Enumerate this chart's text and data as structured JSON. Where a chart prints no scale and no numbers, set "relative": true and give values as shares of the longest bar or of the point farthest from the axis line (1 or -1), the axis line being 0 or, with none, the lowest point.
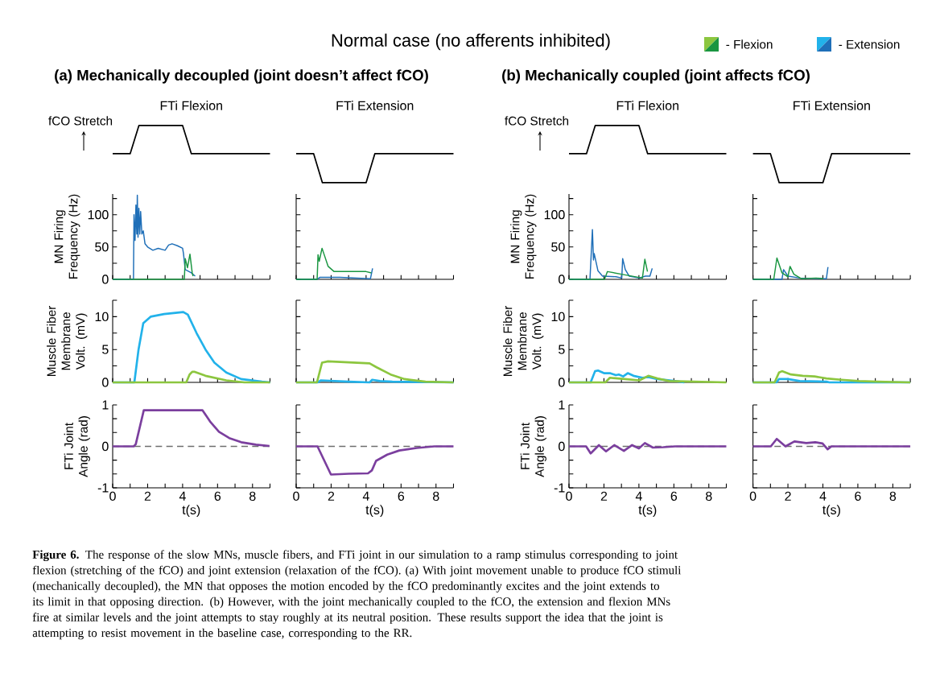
{
  "chart_data": [
    {
      "type": "line",
      "relative": true,
      "title": "FTi Flexion",
      "ylabel": "fCO Stretch",
      "tick_labels": false,
      "categories": [
        null,
        null,
        null,
        null,
        null,
        null,
        null,
        null,
        null,
        null,
        null,
        null,
        null,
        null,
        null,
        null,
        null,
        null,
        null
      ],
      "annotations": [
        "Normal case (no afferents inhibited)",
        "(a) Mechanically decoupled (joint doesn’t affect fCO)",
        "**Figure 6.** The response of the slow MNs, muscle fibers, and FTi joint in our simulation to a ramp stimulus corresponding to joint flexion (stretching of the fCO) and joint extension (relaxation of the fCO). (a) With joint movement unable to produce fCO stimuli (mechanically decoupled), the MN that opposes the motion encoded by the fCO predominantly excites and the joint extends to its limit in that opposing direction. (b) However, with the joint mechanically coupled to the fCO, the extension and flexion MNs fire at similar levels and the joint attempts to stay roughly at its neutral position. These results support the idea that the joint is attempting to resist movement in the baseline case, corresponding to the RR."
      ],
      "series": [
        {
          "color": "#000000",
          "values": [
            0,
            0,
            0,
            1,
            1,
            1,
            1,
            1,
            1,
            0,
            0,
            0,
            0,
            0,
            0,
            0,
            0,
            0,
            0
          ]
        }
      ]
    },
    {
      "type": "line",
      "relative": true,
      "title": "FTi Extension",
      "tick_labels": false,
      "categories": [
        null,
        null,
        null,
        null,
        null,
        null,
        null,
        null,
        null,
        null,
        null,
        null,
        null,
        null,
        null,
        null,
        null,
        null,
        null
      ],
      "series": [
        {
          "color": "#000000",
          "values": [
            1,
            1,
            1,
            0,
            0,
            0,
            0,
            0,
            0,
            1,
            1,
            1,
            1,
            1,
            1,
            1,
            1,
            1,
            1
          ]
        }
      ]
    },
    {
      "type": "line",
      "relative": true,
      "title": "FTi Flexion",
      "ylabel": "fCO Stretch",
      "tick_labels": false,
      "categories": [
        null,
        null,
        null,
        null,
        null,
        null,
        null,
        null,
        null,
        null,
        null,
        null,
        null,
        null,
        null,
        null,
        null,
        null,
        null
      ],
      "annotations": [
        "(b) Mechanically coupled (joint affects fCO)"
      ],
      "series": [
        {
          "color": "#000000",
          "values": [
            0,
            0,
            0,
            1,
            1,
            1,
            1,
            1,
            1,
            0,
            0,
            0,
            0,
            0,
            0,
            0,
            0,
            0,
            0
          ]
        }
      ]
    },
    {
      "type": "line",
      "relative": true,
      "title": "FTi Extension",
      "tick_labels": false,
      "categories": [
        null,
        null,
        null,
        null,
        null,
        null,
        null,
        null,
        null,
        null,
        null,
        null,
        null,
        null,
        null,
        null,
        null,
        null,
        null
      ],
      "series": [
        {
          "color": "#000000",
          "values": [
            1,
            1,
            1,
            0,
            0,
            0,
            0,
            0,
            0,
            1,
            1,
            1,
            1,
            1,
            1,
            1,
            1,
            1,
            1
          ]
        }
      ]
    },
    {
      "type": "line",
      "ylabel": "MN Firing Frequency (Hz)",
      "xlim": [
        0,
        9
      ],
      "ylim": [
        0,
        132
      ],
      "tick_labels": "y",
      "legend": "top right",
      "xticks": [
        0,
        {
          "value": 1,
          "label": null
        },
        2,
        {
          "value": 3,
          "label": null
        },
        4,
        {
          "value": 5,
          "label": null
        },
        6,
        {
          "value": 7,
          "label": null
        },
        8,
        {
          "value": 9,
          "label": null
        }
      ],
      "yticks": [
        0,
        {
          "value": 25,
          "label": null
        },
        50,
        {
          "value": 75,
          "label": null
        },
        100,
        {
          "value": 125,
          "label": null
        }
      ],
      "series": [
        {
          "name": "- Extension",
          "color": "#1f6fb8",
          "x": [
            0,
            1.19,
            1.22,
            1.28,
            1.33,
            1.38,
            1.41,
            1.45,
            1.5,
            1.55,
            1.6,
            1.67,
            1.75,
            1.85,
            2.0,
            2.3,
            2.6,
            3.0,
            3.2,
            3.4,
            3.7,
            4.0,
            4.05,
            4.15,
            4.5,
            4.72
          ],
          "values": [
            0,
            0,
            100,
            60,
            115,
            70,
            130,
            65,
            110,
            70,
            105,
            70,
            75,
            55,
            50,
            45,
            48,
            45,
            53,
            55,
            52,
            48,
            40,
            15,
            10,
            5
          ]
        },
        {
          "name": "- Flexion",
          "color": "#1a9641",
          "x": [
            0,
            4.1,
            4.15,
            4.28,
            4.42,
            4.55,
            4.6
          ],
          "values": [
            0,
            0,
            32,
            18,
            39,
            10,
            5
          ]
        }
      ]
    },
    {
      "type": "line",
      "xlim": [
        0,
        9
      ],
      "ylim": [
        0,
        132
      ],
      "tick_labels": false,
      "xticks": [
        0,
        {
          "value": 1,
          "label": null
        },
        2,
        {
          "value": 3,
          "label": null
        },
        4,
        {
          "value": 5,
          "label": null
        },
        6,
        {
          "value": 7,
          "label": null
        },
        8,
        {
          "value": 9,
          "label": null
        }
      ],
      "yticks": [
        0,
        {
          "value": 25,
          "label": null
        },
        50,
        {
          "value": 75,
          "label": null
        },
        100,
        {
          "value": 125,
          "label": null
        }
      ],
      "series": [
        {
          "color": "#1f6fb8",
          "x": [
            0,
            1.2,
            1.35,
            2.5,
            4.2,
            4.25,
            4.37
          ],
          "values": [
            0,
            0,
            3,
            3,
            1,
            1,
            17
          ]
        },
        {
          "color": "#1a9641",
          "x": [
            0,
            1.2,
            1.25,
            1.32,
            1.48,
            1.58,
            1.83,
            2.17,
            3,
            4,
            4.3
          ],
          "values": [
            0,
            0,
            38,
            28,
            48,
            40,
            20,
            12,
            12,
            12,
            10
          ]
        }
      ]
    },
    {
      "type": "line",
      "ylabel": "MN Firing Frequency (Hz)",
      "xlim": [
        0,
        9
      ],
      "ylim": [
        0,
        132
      ],
      "tick_labels": "y",
      "xticks": [
        0,
        {
          "value": 1,
          "label": null
        },
        2,
        {
          "value": 3,
          "label": null
        },
        4,
        {
          "value": 5,
          "label": null
        },
        6,
        {
          "value": 7,
          "label": null
        },
        8,
        {
          "value": 9,
          "label": null
        }
      ],
      "yticks": [
        0,
        {
          "value": 25,
          "label": null
        },
        50,
        {
          "value": 75,
          "label": null
        },
        100,
        {
          "value": 125,
          "label": null
        }
      ],
      "series": [
        {
          "color": "#1f6fb8",
          "x": [
            0,
            1.2,
            1.34,
            1.4,
            1.44,
            1.66,
            1.92,
            2.68,
            3.02,
            3.07,
            3.22,
            3.44,
            4.03,
            4.37,
            4.63,
            4.76
          ],
          "values": [
            0,
            0,
            77,
            30,
            40,
            13,
            5,
            4,
            2,
            32,
            15,
            5,
            2,
            5,
            5,
            17
          ]
        },
        {
          "color": "#1a9641",
          "x": [
            0,
            2.03,
            2.2,
            3.18,
            4.2,
            4.34,
            4.49
          ],
          "values": [
            0,
            0,
            12,
            7,
            2,
            31,
            12
          ]
        }
      ]
    },
    {
      "type": "line",
      "xlim": [
        0,
        9
      ],
      "ylim": [
        0,
        132
      ],
      "tick_labels": false,
      "xticks": [
        0,
        {
          "value": 1,
          "label": null
        },
        2,
        {
          "value": 3,
          "label": null
        },
        4,
        {
          "value": 5,
          "label": null
        },
        6,
        {
          "value": 7,
          "label": null
        },
        8,
        {
          "value": 9,
          "label": null
        }
      ],
      "yticks": [
        0,
        {
          "value": 25,
          "label": null
        },
        50,
        {
          "value": 75,
          "label": null
        },
        100,
        {
          "value": 125,
          "label": null
        }
      ],
      "series": [
        {
          "color": "#1f6fb8",
          "x": [
            0,
            1.66,
            1.75,
            2.0,
            2.68,
            4.2,
            4.29
          ],
          "values": [
            0,
            0,
            15,
            5,
            2,
            1,
            19
          ]
        },
        {
          "color": "#1a9641",
          "x": [
            0,
            1.19,
            1.37,
            1.66,
            2.0,
            2.12,
            2.34,
            2.76,
            3.61,
            4.03
          ],
          "values": [
            0,
            0,
            33,
            10,
            4,
            20,
            8,
            1,
            2,
            1
          ]
        }
      ]
    },
    {
      "type": "line",
      "ylabel": "Muscle Fiber Membrane Volt. (mV)",
      "xlim": [
        0,
        9
      ],
      "ylim": [
        0,
        12.5
      ],
      "tick_labels": "y",
      "xticks": [
        0,
        {
          "value": 1,
          "label": null
        },
        2,
        {
          "value": 3,
          "label": null
        },
        4,
        {
          "value": 5,
          "label": null
        },
        6,
        {
          "value": 7,
          "label": null
        },
        8,
        {
          "value": 9,
          "label": null
        }
      ],
      "yticks": [
        0,
        {
          "value": 2.5,
          "label": null
        },
        5,
        {
          "value": 7.5,
          "label": null
        },
        10,
        {
          "value": 12.5,
          "label": null
        }
      ],
      "series": [
        {
          "color": "#22b2ea",
          "x": [
            0,
            1.24,
            1.48,
            1.75,
            2.17,
            2.94,
            4.04,
            4.3,
            4.8,
            5.31,
            5.82,
            6.5,
            7.35,
            8.54,
            9
          ],
          "values": [
            0,
            0,
            5,
            9,
            10,
            10.4,
            10.7,
            10.3,
            7.5,
            5,
            3,
            1.5,
            0.5,
            0.1,
            0
          ]
        },
        {
          "color": "#8cc63f",
          "x": [
            0,
            4.21,
            4.4,
            4.55,
            4.7,
            5.31,
            6.5,
            7.52,
            9
          ],
          "values": [
            0,
            0,
            1.2,
            1.6,
            1.6,
            1.0,
            0.3,
            0,
            0
          ]
        }
      ]
    },
    {
      "type": "line",
      "xlim": [
        0,
        9
      ],
      "ylim": [
        0,
        12.5
      ],
      "tick_labels": false,
      "xticks": [
        0,
        {
          "value": 1,
          "label": null
        },
        2,
        {
          "value": 3,
          "label": null
        },
        4,
        {
          "value": 5,
          "label": null
        },
        6,
        {
          "value": 7,
          "label": null
        },
        8,
        {
          "value": 9,
          "label": null
        }
      ],
      "yticks": [
        0,
        {
          "value": 2.5,
          "label": null
        },
        5,
        {
          "value": 7.5,
          "label": null
        },
        10,
        {
          "value": 12.5,
          "label": null
        }
      ],
      "series": [
        {
          "color": "#22b2ea",
          "x": [
            0,
            1.24,
            1.4,
            3,
            4.2,
            4.35,
            4.8,
            5.5,
            9
          ],
          "values": [
            0,
            0,
            0.3,
            0.1,
            0,
            0.4,
            0.2,
            0.1,
            0
          ]
        },
        {
          "color": "#8cc63f",
          "x": [
            0,
            1.19,
            1.48,
            1.82,
            4.2,
            4.6,
            5.4,
            6.2,
            7.4,
            9
          ],
          "values": [
            0,
            0,
            3,
            3.2,
            2.9,
            2.3,
            1.2,
            0.5,
            0.1,
            0
          ]
        }
      ]
    },
    {
      "type": "line",
      "ylabel": "Muscle Fiber Membrane Volt. (mV)",
      "xlim": [
        0,
        9
      ],
      "ylim": [
        0,
        12.5
      ],
      "tick_labels": "y",
      "xticks": [
        0,
        {
          "value": 1,
          "label": null
        },
        2,
        {
          "value": 3,
          "label": null
        },
        4,
        {
          "value": 5,
          "label": null
        },
        6,
        {
          "value": 7,
          "label": null
        },
        8,
        {
          "value": 9,
          "label": null
        }
      ],
      "yticks": [
        0,
        {
          "value": 2.5,
          "label": null
        },
        5,
        {
          "value": 7.5,
          "label": null
        },
        10,
        {
          "value": 12.5,
          "label": null
        }
      ],
      "series": [
        {
          "color": "#22b2ea",
          "x": [
            0,
            1.24,
            1.49,
            1.66,
            2.0,
            2.34,
            2.68,
            2.85,
            3.1,
            3.36,
            3.69,
            4.2,
            4.54,
            5.05,
            6.07,
            6.6
          ],
          "values": [
            0,
            0,
            1.7,
            1.8,
            1.4,
            1.4,
            1.1,
            1.2,
            0.9,
            1.4,
            1.0,
            0.7,
            0.8,
            0.5,
            0.2,
            0
          ]
        },
        {
          "color": "#8cc63f",
          "x": [
            0,
            2.08,
            2.34,
            3.19,
            4.03,
            4.54,
            5.05,
            5.73,
            9
          ],
          "values": [
            0,
            0,
            0.7,
            0.5,
            0.3,
            1.0,
            0.6,
            0.2,
            0
          ]
        }
      ]
    },
    {
      "type": "line",
      "xlim": [
        0,
        9
      ],
      "ylim": [
        0,
        12.5
      ],
      "tick_labels": false,
      "xticks": [
        0,
        {
          "value": 1,
          "label": null
        },
        2,
        {
          "value": 3,
          "label": null
        },
        4,
        {
          "value": 5,
          "label": null
        },
        6,
        {
          "value": 7,
          "label": null
        },
        8,
        {
          "value": 9,
          "label": null
        }
      ],
      "yticks": [
        0,
        {
          "value": 2.5,
          "label": null
        },
        5,
        {
          "value": 7.5,
          "label": null
        },
        10,
        {
          "value": 12.5,
          "label": null
        }
      ],
      "series": [
        {
          "color": "#22b2ea",
          "x": [
            0,
            1.34,
            1.49,
            2.0,
            2.68,
            4.2,
            4.37,
            9
          ],
          "values": [
            0,
            0,
            0.5,
            0.5,
            0.2,
            0.1,
            0,
            0
          ]
        },
        {
          "color": "#8cc63f",
          "x": [
            0,
            1.24,
            1.49,
            1.66,
            2.17,
            2.85,
            3.53,
            4.2,
            5.05,
            6.07,
            7.1,
            9
          ],
          "values": [
            0,
            0,
            1.5,
            1.7,
            1.2,
            1.0,
            0.9,
            0.6,
            0.4,
            0.2,
            0.1,
            0
          ]
        }
      ]
    },
    {
      "type": "line",
      "ylabel": "FTi Joint Angle (rad)",
      "xlabel": "t(s)",
      "xlim": [
        0,
        9
      ],
      "ylim": [
        -1,
        1
      ],
      "xticks": [
        0,
        {
          "value": 1,
          "label": null
        },
        2,
        {
          "value": 3,
          "label": null
        },
        4,
        {
          "value": 5,
          "label": null
        },
        6,
        {
          "value": 7,
          "label": null
        },
        8,
        {
          "value": 9,
          "label": null
        }
      ],
      "yticks": [
        -1,
        {
          "value": -0.667,
          "label": null
        },
        {
          "value": -0.333,
          "label": null
        },
        0,
        {
          "value": 0.333,
          "label": null
        },
        {
          "value": 0.667,
          "label": null
        },
        1
      ],
      "ref_lines": [
        {
          "axis": "y",
          "value": 0,
          "color": "#6e6e6e",
          "line_style": "dashed"
        }
      ],
      "series": [
        {
          "color": "#7b3f9e",
          "x": [
            0,
            1.2,
            1.32,
            1.78,
            5.14,
            5.57,
            6.08,
            6.67,
            7.35,
            8.2,
            8.97
          ],
          "values": [
            0,
            0,
            0.05,
            0.87,
            0.87,
            0.6,
            0.35,
            0.2,
            0.1,
            0.04,
            0.01
          ]
        }
      ]
    },
    {
      "type": "line",
      "xlabel": "t(s)",
      "xlim": [
        0,
        9
      ],
      "ylim": [
        -1,
        1
      ],
      "tick_labels": "x",
      "xticks": [
        0,
        {
          "value": 1,
          "label": null
        },
        2,
        {
          "value": 3,
          "label": null
        },
        4,
        {
          "value": 5,
          "label": null
        },
        6,
        {
          "value": 7,
          "label": null
        },
        8,
        {
          "value": 9,
          "label": null
        }
      ],
      "yticks": [
        -1,
        {
          "value": -0.667,
          "label": null
        },
        {
          "value": -0.333,
          "label": null
        },
        0,
        {
          "value": 0.333,
          "label": null
        },
        {
          "value": 0.667,
          "label": null
        },
        1
      ],
      "ref_lines": [
        {
          "axis": "y",
          "value": 0,
          "color": "#6e6e6e",
          "line_style": "dashed"
        }
      ],
      "series": [
        {
          "color": "#7b3f9e",
          "x": [
            0,
            1.22,
            1.99,
            3.01,
            4.11,
            4.33,
            4.57,
            5.21,
            5.9,
            6.9,
            7.9,
            9
          ],
          "values": [
            0,
            0,
            -0.68,
            -0.66,
            -0.65,
            -0.58,
            -0.35,
            -0.2,
            -0.1,
            -0.04,
            0,
            0
          ]
        }
      ]
    },
    {
      "type": "line",
      "ylabel": "FTi Joint Angle (rad)",
      "xlabel": "t(s)",
      "xlim": [
        0,
        9
      ],
      "ylim": [
        -1,
        1
      ],
      "xticks": [
        0,
        {
          "value": 1,
          "label": null
        },
        2,
        {
          "value": 3,
          "label": null
        },
        4,
        {
          "value": 5,
          "label": null
        },
        6,
        {
          "value": 7,
          "label": null
        },
        8,
        {
          "value": 9,
          "label": null
        }
      ],
      "yticks": [
        -1,
        {
          "value": -0.667,
          "label": null
        },
        {
          "value": -0.333,
          "label": null
        },
        0,
        {
          "value": 0.333,
          "label": null
        },
        {
          "value": 0.667,
          "label": null
        },
        1
      ],
      "ref_lines": [
        {
          "axis": "y",
          "value": 0,
          "color": "#6e6e6e",
          "line_style": "dashed"
        }
      ],
      "series": [
        {
          "color": "#7b3f9e",
          "x": [
            0,
            0.98,
            1.24,
            1.71,
            2.12,
            2.59,
            3.14,
            3.61,
            4.0,
            4.34,
            4.8,
            5.4,
            6.07,
            9
          ],
          "values": [
            0,
            0,
            -0.17,
            0.03,
            -0.12,
            0.03,
            -0.11,
            0.03,
            -0.05,
            0.08,
            -0.03,
            -0.02,
            0,
            0
          ]
        }
      ]
    },
    {
      "type": "line",
      "xlabel": "t(s)",
      "xlim": [
        0,
        9
      ],
      "ylim": [
        -1,
        1
      ],
      "tick_labels": "x",
      "xticks": [
        0,
        {
          "value": 1,
          "label": null
        },
        2,
        {
          "value": 3,
          "label": null
        },
        4,
        {
          "value": 5,
          "label": null
        },
        6,
        {
          "value": 7,
          "label": null
        },
        8,
        {
          "value": 9,
          "label": null
        }
      ],
      "yticks": [
        -1,
        {
          "value": -0.667,
          "label": null
        },
        {
          "value": -0.333,
          "label": null
        },
        0,
        {
          "value": 0.333,
          "label": null
        },
        {
          "value": 0.667,
          "label": null
        },
        1
      ],
      "ref_lines": [
        {
          "axis": "y",
          "value": 0,
          "color": "#6e6e6e",
          "line_style": "dashed"
        }
      ],
      "series": [
        {
          "color": "#7b3f9e",
          "x": [
            0,
            1.02,
            1.36,
            1.86,
            2.37,
            3.05,
            3.56,
            3.98,
            4.27,
            4.49,
            9
          ],
          "values": [
            0,
            0,
            0.18,
            0,
            0.12,
            0.08,
            0.1,
            0.07,
            -0.07,
            0,
            0
          ]
        }
      ]
    }
  ]
}
